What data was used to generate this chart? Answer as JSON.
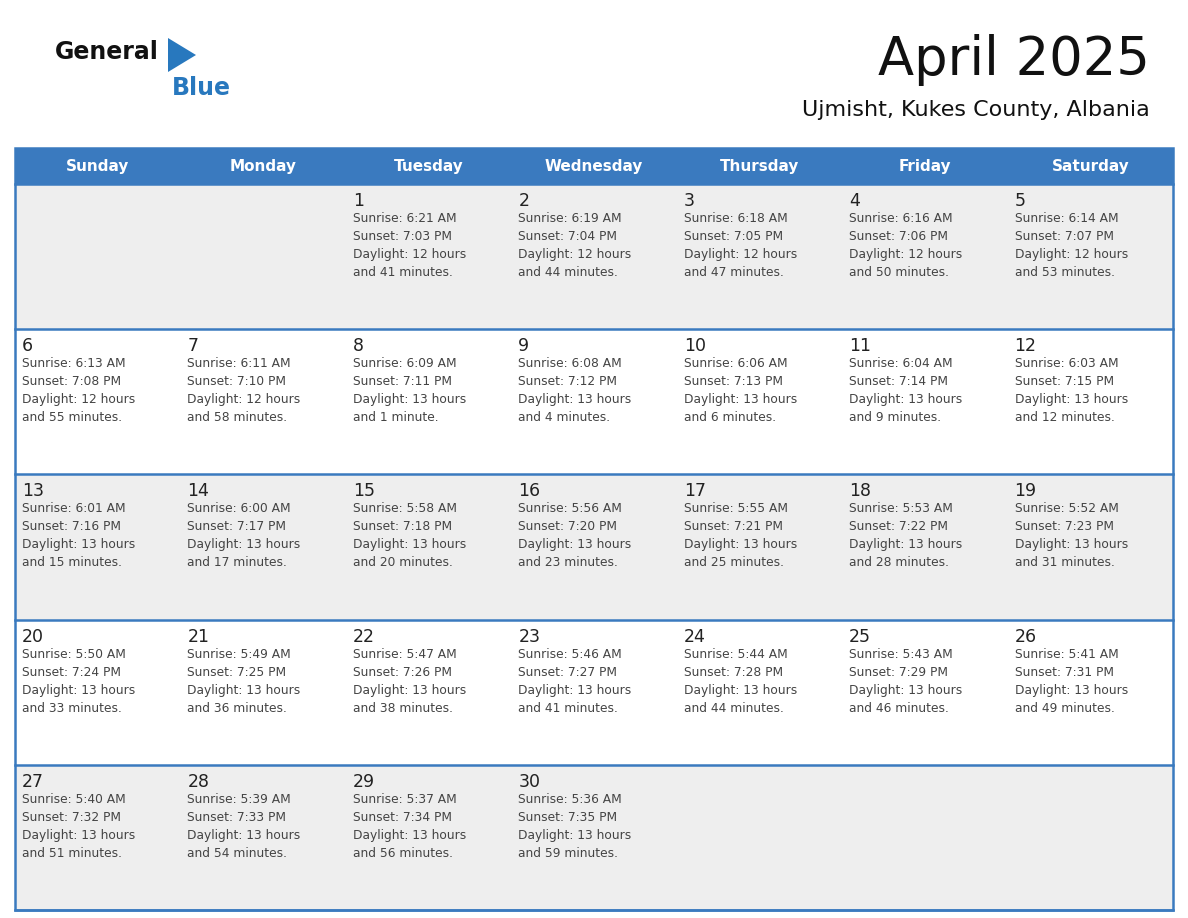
{
  "title": "April 2025",
  "subtitle": "Ujmisht, Kukes County, Albania",
  "weekdays": [
    "Sunday",
    "Monday",
    "Tuesday",
    "Wednesday",
    "Thursday",
    "Friday",
    "Saturday"
  ],
  "header_bg": "#3A7ABF",
  "header_text": "#FFFFFF",
  "row_bg": [
    "#EEEEEE",
    "#FFFFFF",
    "#EEEEEE",
    "#FFFFFF",
    "#EEEEEE"
  ],
  "border_color": "#3A7ABF",
  "day_number_color": "#222222",
  "cell_text_color": "#444444",
  "title_color": "#111111",
  "subtitle_color": "#111111",
  "logo_general_color": "#111111",
  "logo_blue_color": "#2878BE",
  "weeks": [
    [
      {
        "day": "",
        "info": ""
      },
      {
        "day": "",
        "info": ""
      },
      {
        "day": "1",
        "info": "Sunrise: 6:21 AM\nSunset: 7:03 PM\nDaylight: 12 hours\nand 41 minutes."
      },
      {
        "day": "2",
        "info": "Sunrise: 6:19 AM\nSunset: 7:04 PM\nDaylight: 12 hours\nand 44 minutes."
      },
      {
        "day": "3",
        "info": "Sunrise: 6:18 AM\nSunset: 7:05 PM\nDaylight: 12 hours\nand 47 minutes."
      },
      {
        "day": "4",
        "info": "Sunrise: 6:16 AM\nSunset: 7:06 PM\nDaylight: 12 hours\nand 50 minutes."
      },
      {
        "day": "5",
        "info": "Sunrise: 6:14 AM\nSunset: 7:07 PM\nDaylight: 12 hours\nand 53 minutes."
      }
    ],
    [
      {
        "day": "6",
        "info": "Sunrise: 6:13 AM\nSunset: 7:08 PM\nDaylight: 12 hours\nand 55 minutes."
      },
      {
        "day": "7",
        "info": "Sunrise: 6:11 AM\nSunset: 7:10 PM\nDaylight: 12 hours\nand 58 minutes."
      },
      {
        "day": "8",
        "info": "Sunrise: 6:09 AM\nSunset: 7:11 PM\nDaylight: 13 hours\nand 1 minute."
      },
      {
        "day": "9",
        "info": "Sunrise: 6:08 AM\nSunset: 7:12 PM\nDaylight: 13 hours\nand 4 minutes."
      },
      {
        "day": "10",
        "info": "Sunrise: 6:06 AM\nSunset: 7:13 PM\nDaylight: 13 hours\nand 6 minutes."
      },
      {
        "day": "11",
        "info": "Sunrise: 6:04 AM\nSunset: 7:14 PM\nDaylight: 13 hours\nand 9 minutes."
      },
      {
        "day": "12",
        "info": "Sunrise: 6:03 AM\nSunset: 7:15 PM\nDaylight: 13 hours\nand 12 minutes."
      }
    ],
    [
      {
        "day": "13",
        "info": "Sunrise: 6:01 AM\nSunset: 7:16 PM\nDaylight: 13 hours\nand 15 minutes."
      },
      {
        "day": "14",
        "info": "Sunrise: 6:00 AM\nSunset: 7:17 PM\nDaylight: 13 hours\nand 17 minutes."
      },
      {
        "day": "15",
        "info": "Sunrise: 5:58 AM\nSunset: 7:18 PM\nDaylight: 13 hours\nand 20 minutes."
      },
      {
        "day": "16",
        "info": "Sunrise: 5:56 AM\nSunset: 7:20 PM\nDaylight: 13 hours\nand 23 minutes."
      },
      {
        "day": "17",
        "info": "Sunrise: 5:55 AM\nSunset: 7:21 PM\nDaylight: 13 hours\nand 25 minutes."
      },
      {
        "day": "18",
        "info": "Sunrise: 5:53 AM\nSunset: 7:22 PM\nDaylight: 13 hours\nand 28 minutes."
      },
      {
        "day": "19",
        "info": "Sunrise: 5:52 AM\nSunset: 7:23 PM\nDaylight: 13 hours\nand 31 minutes."
      }
    ],
    [
      {
        "day": "20",
        "info": "Sunrise: 5:50 AM\nSunset: 7:24 PM\nDaylight: 13 hours\nand 33 minutes."
      },
      {
        "day": "21",
        "info": "Sunrise: 5:49 AM\nSunset: 7:25 PM\nDaylight: 13 hours\nand 36 minutes."
      },
      {
        "day": "22",
        "info": "Sunrise: 5:47 AM\nSunset: 7:26 PM\nDaylight: 13 hours\nand 38 minutes."
      },
      {
        "day": "23",
        "info": "Sunrise: 5:46 AM\nSunset: 7:27 PM\nDaylight: 13 hours\nand 41 minutes."
      },
      {
        "day": "24",
        "info": "Sunrise: 5:44 AM\nSunset: 7:28 PM\nDaylight: 13 hours\nand 44 minutes."
      },
      {
        "day": "25",
        "info": "Sunrise: 5:43 AM\nSunset: 7:29 PM\nDaylight: 13 hours\nand 46 minutes."
      },
      {
        "day": "26",
        "info": "Sunrise: 5:41 AM\nSunset: 7:31 PM\nDaylight: 13 hours\nand 49 minutes."
      }
    ],
    [
      {
        "day": "27",
        "info": "Sunrise: 5:40 AM\nSunset: 7:32 PM\nDaylight: 13 hours\nand 51 minutes."
      },
      {
        "day": "28",
        "info": "Sunrise: 5:39 AM\nSunset: 7:33 PM\nDaylight: 13 hours\nand 54 minutes."
      },
      {
        "day": "29",
        "info": "Sunrise: 5:37 AM\nSunset: 7:34 PM\nDaylight: 13 hours\nand 56 minutes."
      },
      {
        "day": "30",
        "info": "Sunrise: 5:36 AM\nSunset: 7:35 PM\nDaylight: 13 hours\nand 59 minutes."
      },
      {
        "day": "",
        "info": ""
      },
      {
        "day": "",
        "info": ""
      },
      {
        "day": "",
        "info": ""
      }
    ]
  ]
}
